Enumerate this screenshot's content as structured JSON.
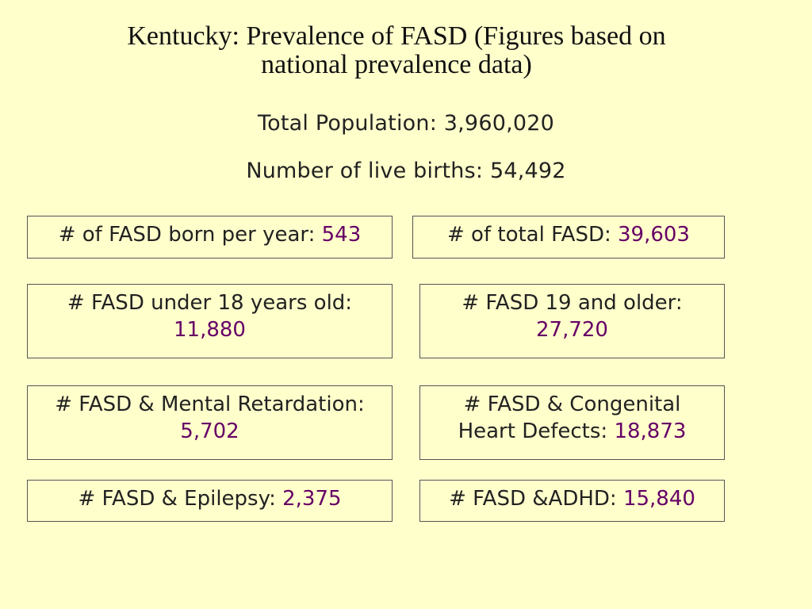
{
  "title": {
    "line1": "Kentucky: Prevalence of FASD (Figures based on",
    "line2": "national prevalence data)"
  },
  "summary": {
    "population": "Total Population: 3,960,020",
    "births": "Number of live births: 54,492"
  },
  "stats": {
    "born_per_year": {
      "label": "# of FASD born per year:",
      "value": "543"
    },
    "total": {
      "label": "# of total FASD:",
      "value": "39,603"
    },
    "under_18": {
      "label": "# FASD under 18 years old:",
      "value": "11,880"
    },
    "over_19": {
      "label": "# FASD 19 and older:",
      "value": "27,720"
    },
    "mental_retardation": {
      "label": "# FASD & Mental Retardation:",
      "value": "5,702"
    },
    "heart_defects": {
      "label1": "# FASD & Congenital",
      "label2": "Heart Defects:",
      "value": "18,873"
    },
    "epilepsy": {
      "label": "# FASD & Epilepsy:",
      "value": "2,375"
    },
    "adhd": {
      "label": "# FASD &ADHD:",
      "value": "15,840"
    }
  },
  "colors": {
    "background": "#ffffcc",
    "value_text": "#660066",
    "border": "#555555"
  }
}
